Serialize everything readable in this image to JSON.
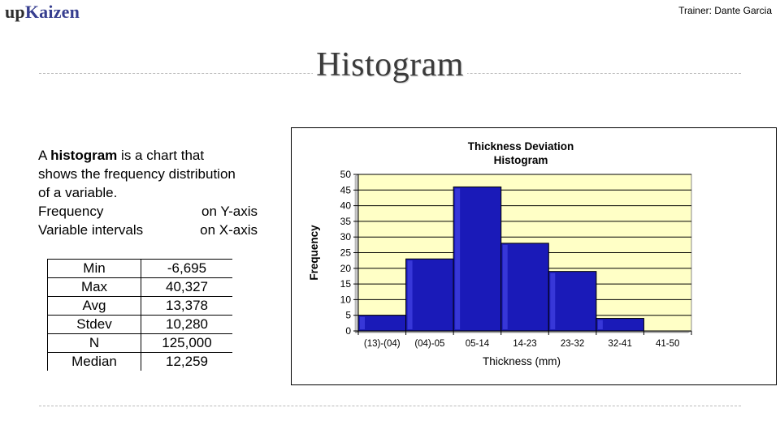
{
  "header": {
    "logo_prefix": "up",
    "logo_brand": "Kaizen",
    "trainer": "Trainer: Dante Garcia"
  },
  "slide": {
    "title": "Histogram"
  },
  "description": {
    "line1_pre": "A ",
    "line1_bold": "histogram",
    "line1_post": " is a chart that",
    "line2": "shows the frequency distribution",
    "line3": "of a variable.",
    "row1_left": "Frequency",
    "row1_right": "on Y-axis",
    "row2_left": "Variable intervals",
    "row2_right": "on X-axis"
  },
  "stats": [
    {
      "label": "Min",
      "value": "-6,695"
    },
    {
      "label": "Max",
      "value": "40,327"
    },
    {
      "label": "Avg",
      "value": "13,378"
    },
    {
      "label": "Stdev",
      "value": "10,280"
    },
    {
      "label": "N",
      "value": "125,000"
    },
    {
      "label": "Median",
      "value": "12,259"
    }
  ],
  "chart_data": {
    "type": "bar",
    "title": "Thickness Deviation Histogram",
    "title_lines": [
      "Thickness Deviation",
      "Histogram"
    ],
    "xlabel": "Thickness (mm)",
    "ylabel": "Frequency",
    "categories": [
      "(13)-(04)",
      "(04)-05",
      "05-14",
      "14-23",
      "23-32",
      "32-41",
      "41-50"
    ],
    "values": [
      5,
      23,
      46,
      28,
      19,
      4,
      0
    ],
    "ylim": [
      0,
      50
    ],
    "yticks": [
      0,
      5,
      10,
      15,
      20,
      25,
      30,
      35,
      40,
      45,
      50
    ],
    "grid": true,
    "legend": "none",
    "plot_bg": "#ffffc6",
    "bar_color": "#1a1ab8"
  }
}
